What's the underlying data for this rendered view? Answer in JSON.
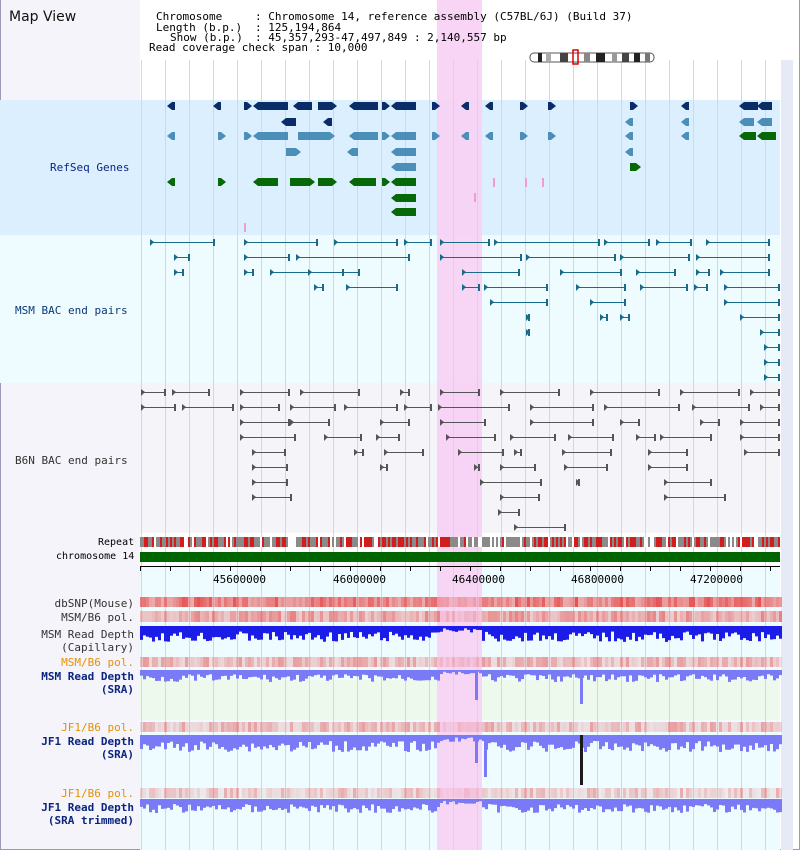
{
  "title": "Map View",
  "info": {
    "chromosome_label": "Chromosome",
    "chromosome_value": ": Chromosome 14, reference assembly (C57BL/6J) (Build 37)",
    "length_label": "Length (b.p.)",
    "length_value": ": 125,194,864",
    "show_label": "Show (b.p.)",
    "show_value": ": 45,357,293-47,497,849 : 2,140,557 bp",
    "read_check": "Read coverage check span : 10,000"
  },
  "tracks": {
    "refseq": "RefSeq Genes",
    "msm_bac": "MSM BAC end pairs",
    "b6n_bac": "B6N BAC end pairs",
    "repeat": "Repeat",
    "chromosome": "chromosome 14",
    "dbsnp": "dbSNP(Mouse)",
    "msm_b6_pol_1": "MSM/B6 pol.",
    "msm_depth_cap_1": "MSM Read Depth",
    "msm_depth_cap_2": "(Capillary)",
    "msm_b6_pol_2": "MSM/B6 pol.",
    "msm_depth_sra_1": "MSM Read Depth",
    "msm_depth_sra_2": "(SRA)",
    "jf1_b6_pol_1": "JF1/B6 pol.",
    "jf1_depth_sra_1": "JF1 Read Depth",
    "jf1_depth_sra_2": "(SRA)",
    "jf1_b6_pol_2": "JF1/B6 pol.",
    "jf1_depth_trim_1": "JF1 Read Depth",
    "jf1_depth_trim_2": "(SRA trimmed)"
  },
  "ruler": {
    "ticks": [
      "45600000",
      "46000000",
      "46400000",
      "46800000",
      "47200000"
    ]
  },
  "colors": {
    "refseq_bg": "#dcefff",
    "bac_bg": "#eefcff",
    "b6n_bg": "#f4f4f9",
    "highlight": "#f7d0f4",
    "refseq_dark": "#0a2d6a",
    "refseq_mid": "#4b8fb8",
    "refseq_green": "#066806",
    "chromosome_bar": "#006400",
    "depth_blue": "#1c1ce8",
    "depth_light": "#7a7af7",
    "label_navy": "#0a2580",
    "label_orange": "#e89000"
  }
}
